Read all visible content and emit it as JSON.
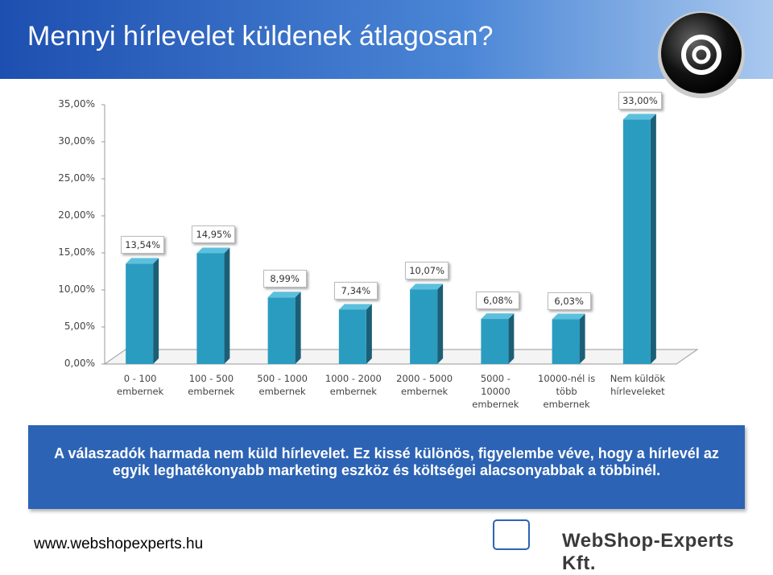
{
  "header": {
    "title": "Mennyi hírlevelet küldenek átlagosan?"
  },
  "chart_data": {
    "type": "bar",
    "categories": [
      "0 - 100 embernek",
      "100 - 500 embernek",
      "500 - 1000 embernek",
      "1000 - 2000 embernek",
      "2000 - 5000 embernek",
      "5000 - 10000 embernek",
      "10000-nél is több embernek",
      "Nem küldök hírleveleket"
    ],
    "values": [
      13.54,
      14.95,
      8.99,
      7.34,
      10.07,
      6.08,
      6.03,
      33.0
    ],
    "value_labels": [
      "13,54%",
      "14,95%",
      "8,99%",
      "7,34%",
      "10,07%",
      "6,08%",
      "6,03%",
      "33,00%"
    ],
    "color": "#2a9cc0",
    "ylim": [
      0,
      35
    ],
    "yticks": [
      {
        "value": 0,
        "label": "0,00%"
      },
      {
        "value": 5,
        "label": "5,00%"
      },
      {
        "value": 10,
        "label": "10,00%"
      },
      {
        "value": 15,
        "label": "15,00%"
      },
      {
        "value": 20,
        "label": "20,00%"
      },
      {
        "value": 25,
        "label": "25,00%"
      },
      {
        "value": 30,
        "label": "30,00%"
      },
      {
        "value": 35,
        "label": "35,00%"
      }
    ]
  },
  "callout": {
    "text": "A válaszadók harmada nem küld hírlevelet. Ez kissé különös, figyelembe véve, hogy a hírlevél az egyik leghatékonyabb marketing eszköz és költségei alacsonyabbak a többinél."
  },
  "footer": {
    "url": "www.webshopexperts.hu",
    "logo": "WebShop-Experts Kft."
  }
}
